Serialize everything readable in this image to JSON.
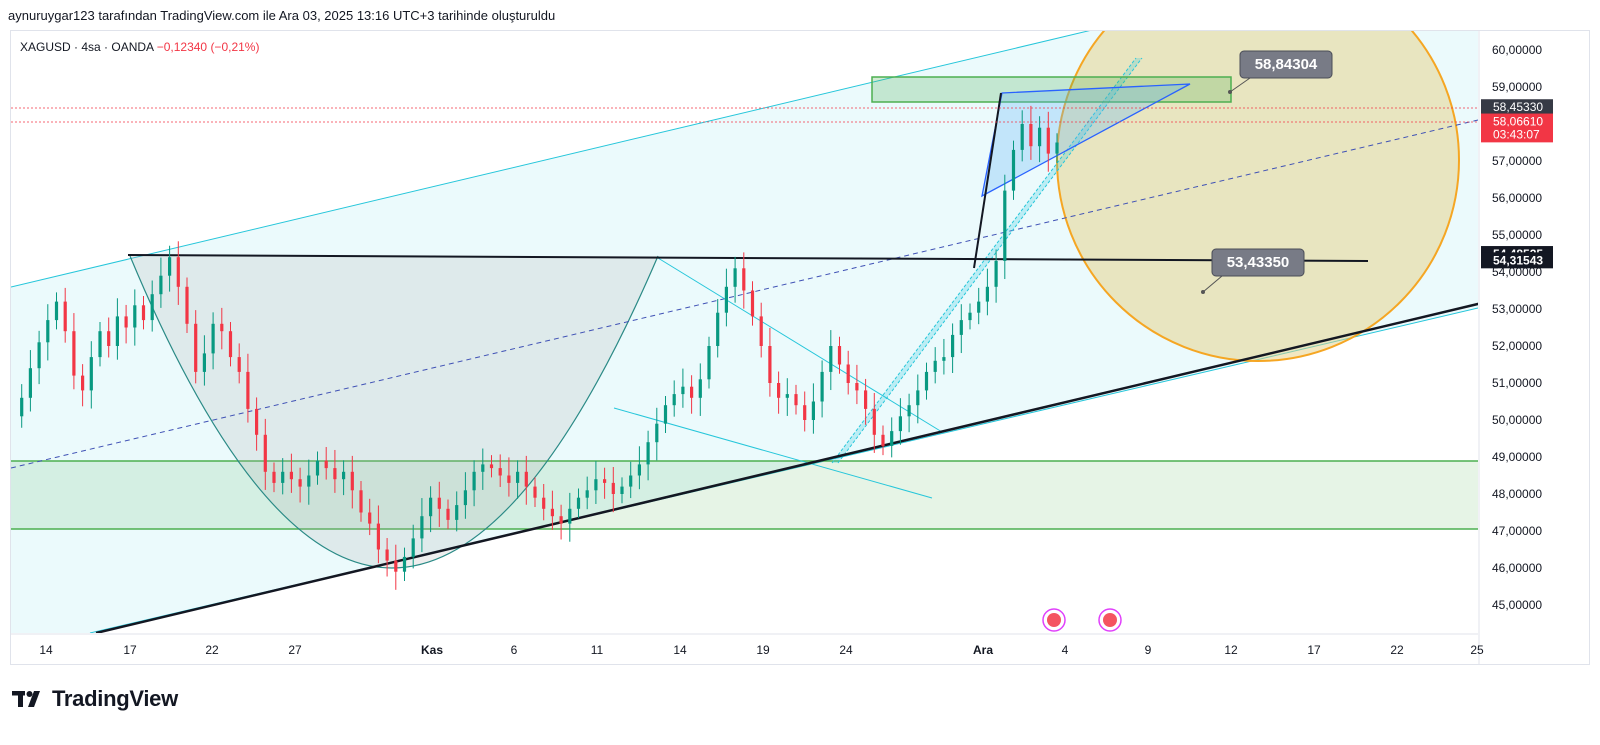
{
  "header": {
    "attribution": "aynuruygar123 tarafından TradingView.com ile Ara 03, 2025 13:16 UTC+3 tarihinde oluşturuldu"
  },
  "legend": {
    "symbol": "XAGUSD · 4sa · OANDA",
    "change": "−0,12340 (−0,21%)"
  },
  "brand": {
    "name": "TradingView"
  },
  "colors": {
    "up": "#089981",
    "down": "#f23645",
    "channel": "#26c6da",
    "zone": "#4caf50",
    "circle": "#f5a623",
    "triangle": "#2962ff"
  },
  "chart_data": {
    "type": "candlestick",
    "y_ticks": [
      "60,00000",
      "59,00000",
      "58,00000",
      "57,00000",
      "56,00000",
      "55,00000",
      "54,00000",
      "53,00000",
      "52,00000",
      "51,00000",
      "50,00000",
      "49,00000",
      "48,00000",
      "47,00000",
      "46,00000",
      "45,00000"
    ],
    "x_ticks": [
      "14",
      "17",
      "22",
      "27",
      "Kas",
      "6",
      "11",
      "14",
      "19",
      "24",
      "Ara",
      "4",
      "9",
      "12",
      "17",
      "22",
      "25"
    ],
    "ylim": [
      44.2,
      60.3
    ],
    "price_labels": [
      {
        "text": "58,45330",
        "value": 58.4533,
        "style": "dark"
      },
      {
        "text": "58,06610",
        "value": 58.0661,
        "style": "red"
      },
      {
        "text": "03:43:07",
        "value": 57.72,
        "style": "red"
      },
      {
        "text": "54,48525",
        "value": 54.48525,
        "style": "black"
      },
      {
        "text": "54,31543",
        "value": 54.31543,
        "style": "black"
      }
    ],
    "callouts": [
      {
        "text": "58,84304",
        "value": 58.84304
      },
      {
        "text": "53,43350",
        "value": 53.4335
      }
    ],
    "series": [
      {
        "name": "",
        "points": [
          [
            0,
            50.1
          ],
          [
            3,
            50.6
          ],
          [
            6,
            51.4
          ],
          [
            9,
            52.1
          ],
          [
            12,
            52.7
          ],
          [
            15,
            53.2
          ],
          [
            18,
            52.4
          ],
          [
            21,
            51.2
          ],
          [
            24,
            50.8
          ],
          [
            27,
            51.7
          ],
          [
            30,
            52.4
          ],
          [
            33,
            52.0
          ],
          [
            36,
            52.8
          ],
          [
            39,
            52.5
          ],
          [
            42,
            53.1
          ],
          [
            45,
            52.7
          ],
          [
            48,
            53.4
          ],
          [
            51,
            53.9
          ],
          [
            54,
            54.4
          ],
          [
            57,
            53.6
          ],
          [
            60,
            52.6
          ],
          [
            63,
            51.3
          ],
          [
            66,
            51.8
          ],
          [
            69,
            52.6
          ],
          [
            72,
            52.4
          ],
          [
            75,
            51.7
          ],
          [
            78,
            51.3
          ],
          [
            81,
            50.3
          ],
          [
            84,
            49.6
          ],
          [
            87,
            48.6
          ],
          [
            90,
            48.3
          ],
          [
            93,
            48.6
          ],
          [
            96,
            48.4
          ],
          [
            99,
            48.2
          ],
          [
            102,
            48.5
          ],
          [
            105,
            48.9
          ],
          [
            108,
            48.7
          ],
          [
            111,
            48.4
          ],
          [
            114,
            48.6
          ],
          [
            117,
            48.1
          ],
          [
            120,
            47.5
          ],
          [
            123,
            47.2
          ],
          [
            126,
            46.5
          ],
          [
            129,
            46.2
          ],
          [
            132,
            45.9
          ],
          [
            135,
            46.3
          ],
          [
            138,
            46.8
          ],
          [
            141,
            47.4
          ],
          [
            144,
            47.9
          ],
          [
            147,
            47.6
          ],
          [
            150,
            47.3
          ],
          [
            153,
            47.7
          ],
          [
            156,
            48.1
          ],
          [
            159,
            48.6
          ],
          [
            162,
            48.8
          ],
          [
            165,
            48.7
          ],
          [
            168,
            48.5
          ],
          [
            171,
            48.3
          ],
          [
            174,
            48.6
          ],
          [
            177,
            48.2
          ],
          [
            180,
            47.9
          ],
          [
            183,
            47.6
          ],
          [
            186,
            47.4
          ],
          [
            189,
            47.2
          ],
          [
            192,
            47.6
          ],
          [
            195,
            47.9
          ],
          [
            198,
            48.1
          ],
          [
            201,
            48.4
          ],
          [
            204,
            48.3
          ],
          [
            207,
            48.0
          ],
          [
            210,
            48.2
          ],
          [
            213,
            48.5
          ],
          [
            216,
            48.8
          ],
          [
            219,
            49.4
          ],
          [
            222,
            49.9
          ],
          [
            225,
            50.4
          ],
          [
            228,
            50.7
          ],
          [
            231,
            50.9
          ],
          [
            234,
            50.6
          ],
          [
            237,
            51.1
          ],
          [
            240,
            52.0
          ],
          [
            243,
            52.9
          ],
          [
            246,
            53.6
          ],
          [
            249,
            54.1
          ],
          [
            252,
            53.5
          ],
          [
            255,
            52.8
          ],
          [
            258,
            52.0
          ],
          [
            261,
            51.0
          ],
          [
            264,
            50.6
          ],
          [
            267,
            50.7
          ],
          [
            270,
            50.4
          ],
          [
            273,
            50.0
          ],
          [
            276,
            50.5
          ],
          [
            279,
            51.3
          ],
          [
            282,
            52.0
          ],
          [
            285,
            51.5
          ],
          [
            288,
            51.0
          ],
          [
            291,
            50.8
          ],
          [
            294,
            50.3
          ],
          [
            297,
            49.6
          ],
          [
            300,
            49.3
          ],
          [
            303,
            49.7
          ],
          [
            306,
            50.1
          ],
          [
            309,
            50.4
          ],
          [
            312,
            50.8
          ],
          [
            315,
            51.3
          ],
          [
            318,
            51.6
          ],
          [
            321,
            51.7
          ],
          [
            324,
            52.3
          ],
          [
            327,
            52.7
          ],
          [
            330,
            52.9
          ],
          [
            333,
            53.2
          ],
          [
            336,
            53.6
          ],
          [
            339,
            54.3
          ],
          [
            342,
            56.2
          ],
          [
            345,
            57.3
          ],
          [
            348,
            58.0
          ],
          [
            351,
            57.4
          ],
          [
            354,
            57.9
          ],
          [
            357,
            57.2
          ],
          [
            360,
            57.5
          ],
          [
            363,
            58.1
          ],
          [
            366,
            58.3
          ],
          [
            369,
            58.0
          ],
          [
            372,
            58.07
          ]
        ]
      }
    ]
  }
}
